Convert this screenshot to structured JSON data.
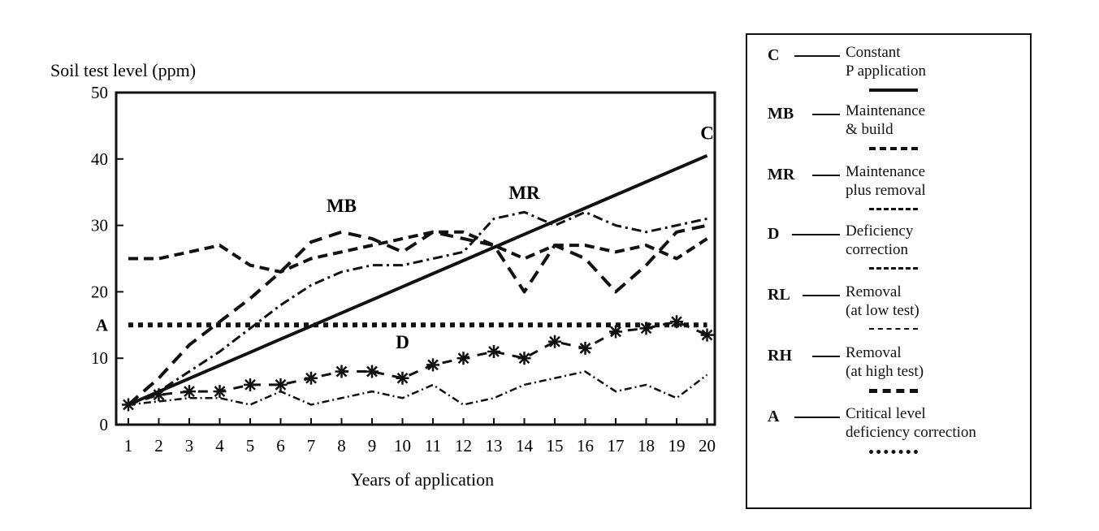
{
  "chart_data": {
    "type": "line",
    "ylabel": "Soil test level (ppm)",
    "xlabel": "Years of application",
    "x": [
      1,
      2,
      3,
      4,
      5,
      6,
      7,
      8,
      9,
      10,
      11,
      12,
      13,
      14,
      15,
      16,
      17,
      18,
      19,
      20
    ],
    "xlim": [
      0.5,
      20.5
    ],
    "ylim": [
      0,
      50
    ],
    "yticks": [
      0,
      10,
      20,
      30,
      40,
      50
    ],
    "yticks_extra_label": {
      "value": 15,
      "label": "A"
    },
    "grid": false,
    "series": [
      {
        "name": "C",
        "style": "solid-thick",
        "values": [
          3,
          4.97,
          6.95,
          8.92,
          10.89,
          12.87,
          14.84,
          16.82,
          18.79,
          20.76,
          22.74,
          24.71,
          26.68,
          28.66,
          30.63,
          32.61,
          34.58,
          36.55,
          38.53,
          40.5
        ]
      },
      {
        "name": "MB",
        "style": "dash-thick",
        "values": [
          3,
          7,
          12,
          15.5,
          19,
          23,
          27.5,
          29,
          28,
          26,
          29,
          28,
          27,
          20,
          27,
          25,
          20,
          24,
          29,
          30
        ]
      },
      {
        "name": "MR",
        "style": "dash-dot",
        "values": [
          3,
          5,
          8,
          11,
          14.5,
          18,
          21,
          23,
          24,
          24,
          25,
          26,
          31,
          32,
          30,
          32,
          30,
          29,
          30,
          31
        ]
      },
      {
        "name": "D",
        "style": "star-markers",
        "values": [
          3,
          4.5,
          5,
          5,
          6,
          6,
          7,
          8,
          8,
          7,
          9,
          10,
          11,
          10,
          12.5,
          11.5,
          14,
          14.5,
          15.5,
          13.5
        ]
      },
      {
        "name": "RL",
        "style": "dash-dot-thin",
        "values": [
          3,
          3.5,
          4,
          4,
          3,
          5,
          3,
          4,
          5,
          4,
          6,
          3,
          4,
          6,
          7,
          8,
          5,
          6,
          4,
          7.5
        ]
      },
      {
        "name": "RH",
        "style": "dash-heavy",
        "values": [
          25,
          25,
          26,
          27,
          24,
          23,
          25,
          26,
          27,
          28,
          29,
          29,
          27,
          25,
          27,
          27,
          26,
          27,
          25,
          28
        ]
      },
      {
        "name": "A",
        "style": "dotted-heavy",
        "values": [
          15,
          15,
          15,
          15,
          15,
          15,
          15,
          15,
          15,
          15,
          15,
          15,
          15,
          15,
          15,
          15,
          15,
          15,
          15,
          15
        ]
      }
    ],
    "annotations": [
      {
        "text": "MB",
        "x": 8,
        "y": 32
      },
      {
        "text": "MR",
        "x": 14,
        "y": 34
      },
      {
        "text": "D",
        "x": 10,
        "y": 11.5
      },
      {
        "text": "C",
        "x": 20,
        "y": 43
      }
    ],
    "legend_position": "right"
  },
  "legend": {
    "items": [
      {
        "code": "C",
        "line1": "Constant",
        "line2": "P application"
      },
      {
        "code": "MB",
        "line1": "Maintenance",
        "line2": "& build"
      },
      {
        "code": "MR",
        "line1": "Maintenance",
        "line2": "plus removal"
      },
      {
        "code": "D",
        "line1": "Deficiency",
        "line2": "correction"
      },
      {
        "code": "RL",
        "line1": "Removal",
        "line2": "(at low test)"
      },
      {
        "code": "RH",
        "line1": "Removal",
        "line2": "(at high test)"
      },
      {
        "code": "A",
        "line1": "Critical level",
        "line2": "deficiency correction"
      }
    ]
  }
}
